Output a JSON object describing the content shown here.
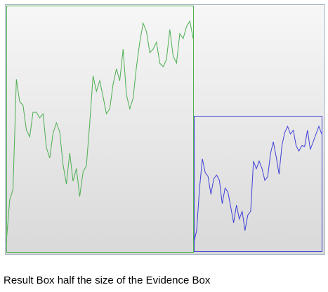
{
  "caption": "Result Box half the size of the Evidence Box",
  "chart_data": [
    {
      "type": "line",
      "color": "#4caf50",
      "values": [
        15,
        75,
        90,
        247,
        215,
        210,
        175,
        165,
        200,
        200,
        192,
        198,
        150,
        135,
        170,
        185,
        172,
        125,
        98,
        142,
        102,
        120,
        80,
        115,
        124,
        185,
        252,
        230,
        245,
        222,
        198,
        205,
        240,
        262,
        245,
        290,
        225,
        205,
        220,
        265,
        300,
        327,
        315,
        285,
        290,
        300,
        270,
        265,
        275,
        318,
        280,
        270,
        312,
        305,
        322,
        330,
        305
      ]
    },
    {
      "type": "line",
      "color": "#3f3fd8",
      "values": [
        30,
        45,
        100,
        138,
        120,
        115,
        92,
        112,
        117,
        110,
        80,
        100,
        95,
        75,
        55,
        78,
        60,
        70,
        45,
        65,
        70,
        135,
        125,
        135,
        125,
        110,
        115,
        145,
        160,
        140,
        118,
        155,
        172,
        180,
        170,
        175,
        155,
        148,
        155,
        154,
        175,
        150,
        160,
        170,
        180,
        170
      ]
    }
  ]
}
